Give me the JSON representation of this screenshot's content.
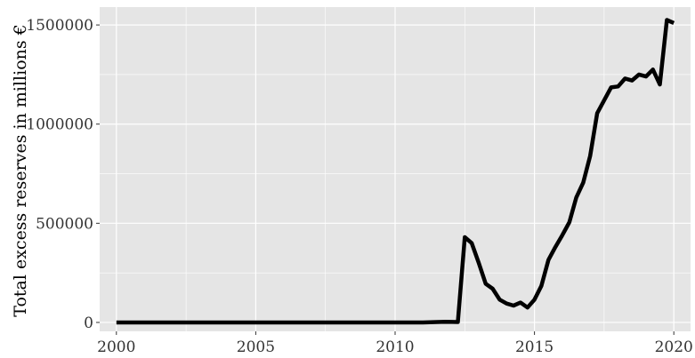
{
  "chart_data": {
    "type": "line",
    "title": "",
    "xlabel": "",
    "ylabel": "Total excess reserves in millions €",
    "xlim": [
      1999.4,
      2020.6
    ],
    "ylim": [
      -45000,
      1590000
    ],
    "x_ticks": [
      2000,
      2005,
      2010,
      2015,
      2020
    ],
    "y_ticks": [
      0,
      500000,
      1000000,
      1500000
    ],
    "x_tick_labels": [
      "2000",
      "2005",
      "2010",
      "2015",
      "2020"
    ],
    "y_tick_labels": [
      "0",
      "500000",
      "1000000",
      "1500000"
    ],
    "grid": true,
    "legend": "none",
    "colors": {
      "panel": "#e5e5e5",
      "grid": "#ffffff",
      "line": "#000000",
      "tick": "#333333"
    },
    "series": [
      {
        "x": [
          2000,
          2001,
          2002,
          2003,
          2004,
          2005,
          2006,
          2007,
          2008,
          2009,
          2010,
          2010.5,
          2011,
          2011.5,
          2011.8,
          2012.25,
          2012.5,
          2012.75,
          2013.0,
          2013.25,
          2013.5,
          2013.75,
          2014.0,
          2014.25,
          2014.5,
          2014.75,
          2015.0,
          2015.25,
          2015.5,
          2015.75,
          2016.0,
          2016.25,
          2016.5,
          2016.75,
          2017.0,
          2017.25,
          2017.5,
          2017.75,
          2018.0,
          2018.25,
          2018.5,
          2018.75,
          2019.0,
          2019.25,
          2019.5,
          2019.75,
          2020.0
        ],
        "y": [
          0,
          0,
          0,
          0,
          0,
          0,
          0,
          0,
          0,
          0,
          0,
          0,
          0,
          2000,
          3000,
          2000,
          430000,
          400000,
          300000,
          195000,
          170000,
          115000,
          95000,
          85000,
          100000,
          75000,
          115000,
          185000,
          315000,
          380000,
          440000,
          505000,
          630000,
          705000,
          840000,
          1055000,
          1120000,
          1185000,
          1190000,
          1230000,
          1220000,
          1250000,
          1240000,
          1275000,
          1200000,
          1525000,
          1510000
        ]
      }
    ]
  }
}
